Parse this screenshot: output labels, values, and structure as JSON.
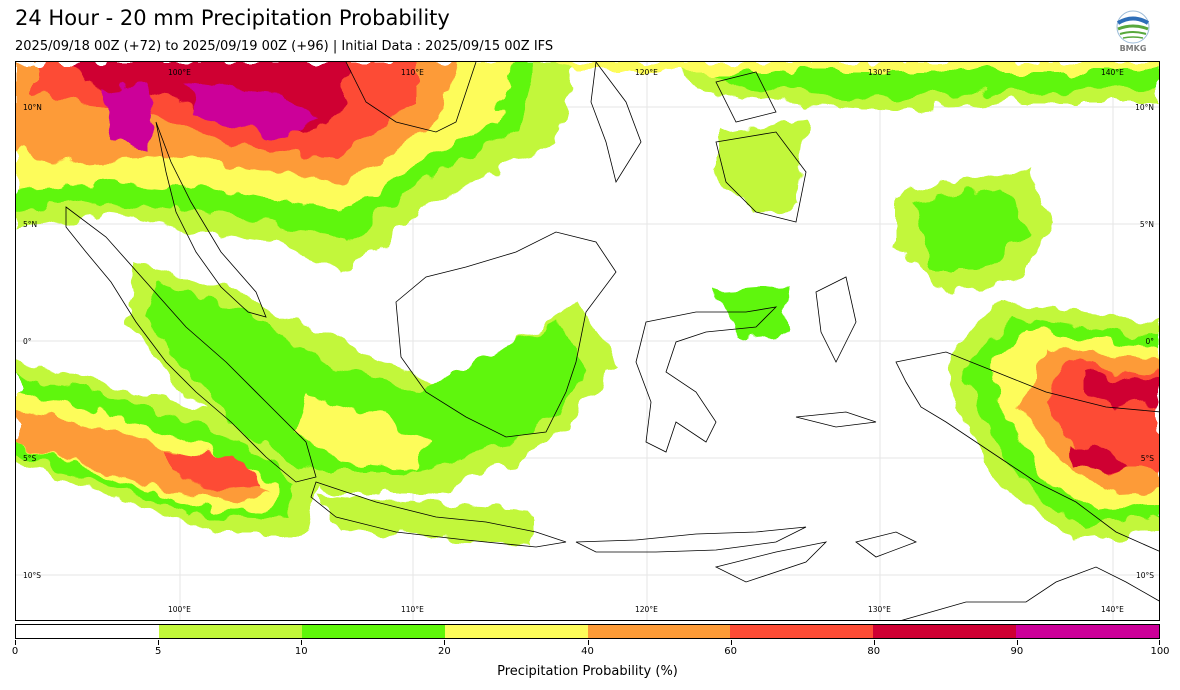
{
  "header": {
    "title": "24 Hour - 20 mm Precipitation Probability",
    "subtitle": "2025/09/18 00Z (+72) to 2025/09/19 00Z (+96) | Initial Data : 2025/09/15 00Z IFS",
    "logo_text": "BMKG"
  },
  "map": {
    "lon_labels_top": [
      "100°E",
      "110°E",
      "120°E",
      "130°E",
      "140°E"
    ],
    "lon_labels_bottom": [
      "100°E",
      "110°E",
      "120°E",
      "130°E",
      "140°E"
    ],
    "lat_labels_left": [
      "10°N",
      "5°N",
      "0°",
      "5°S",
      "10°S"
    ],
    "lat_labels_right": [
      "10°N",
      "5°N",
      "0°",
      "5°S",
      "10°S"
    ],
    "extent": {
      "lon_min": 93,
      "lon_max": 142,
      "lat_min": -12,
      "lat_max": 12
    },
    "background_color": "#ffffff"
  },
  "colorbar": {
    "label": "Precipitation Probability (%)",
    "ticks": [
      "0",
      "5",
      "10",
      "20",
      "40",
      "60",
      "80",
      "90",
      "100"
    ],
    "colors": [
      "#ffffff",
      "#c2f73a",
      "#5ff60a",
      "#fdfc5a",
      "#fd9b37",
      "#fd4c35",
      "#cf0033",
      "#cc0099"
    ]
  }
}
